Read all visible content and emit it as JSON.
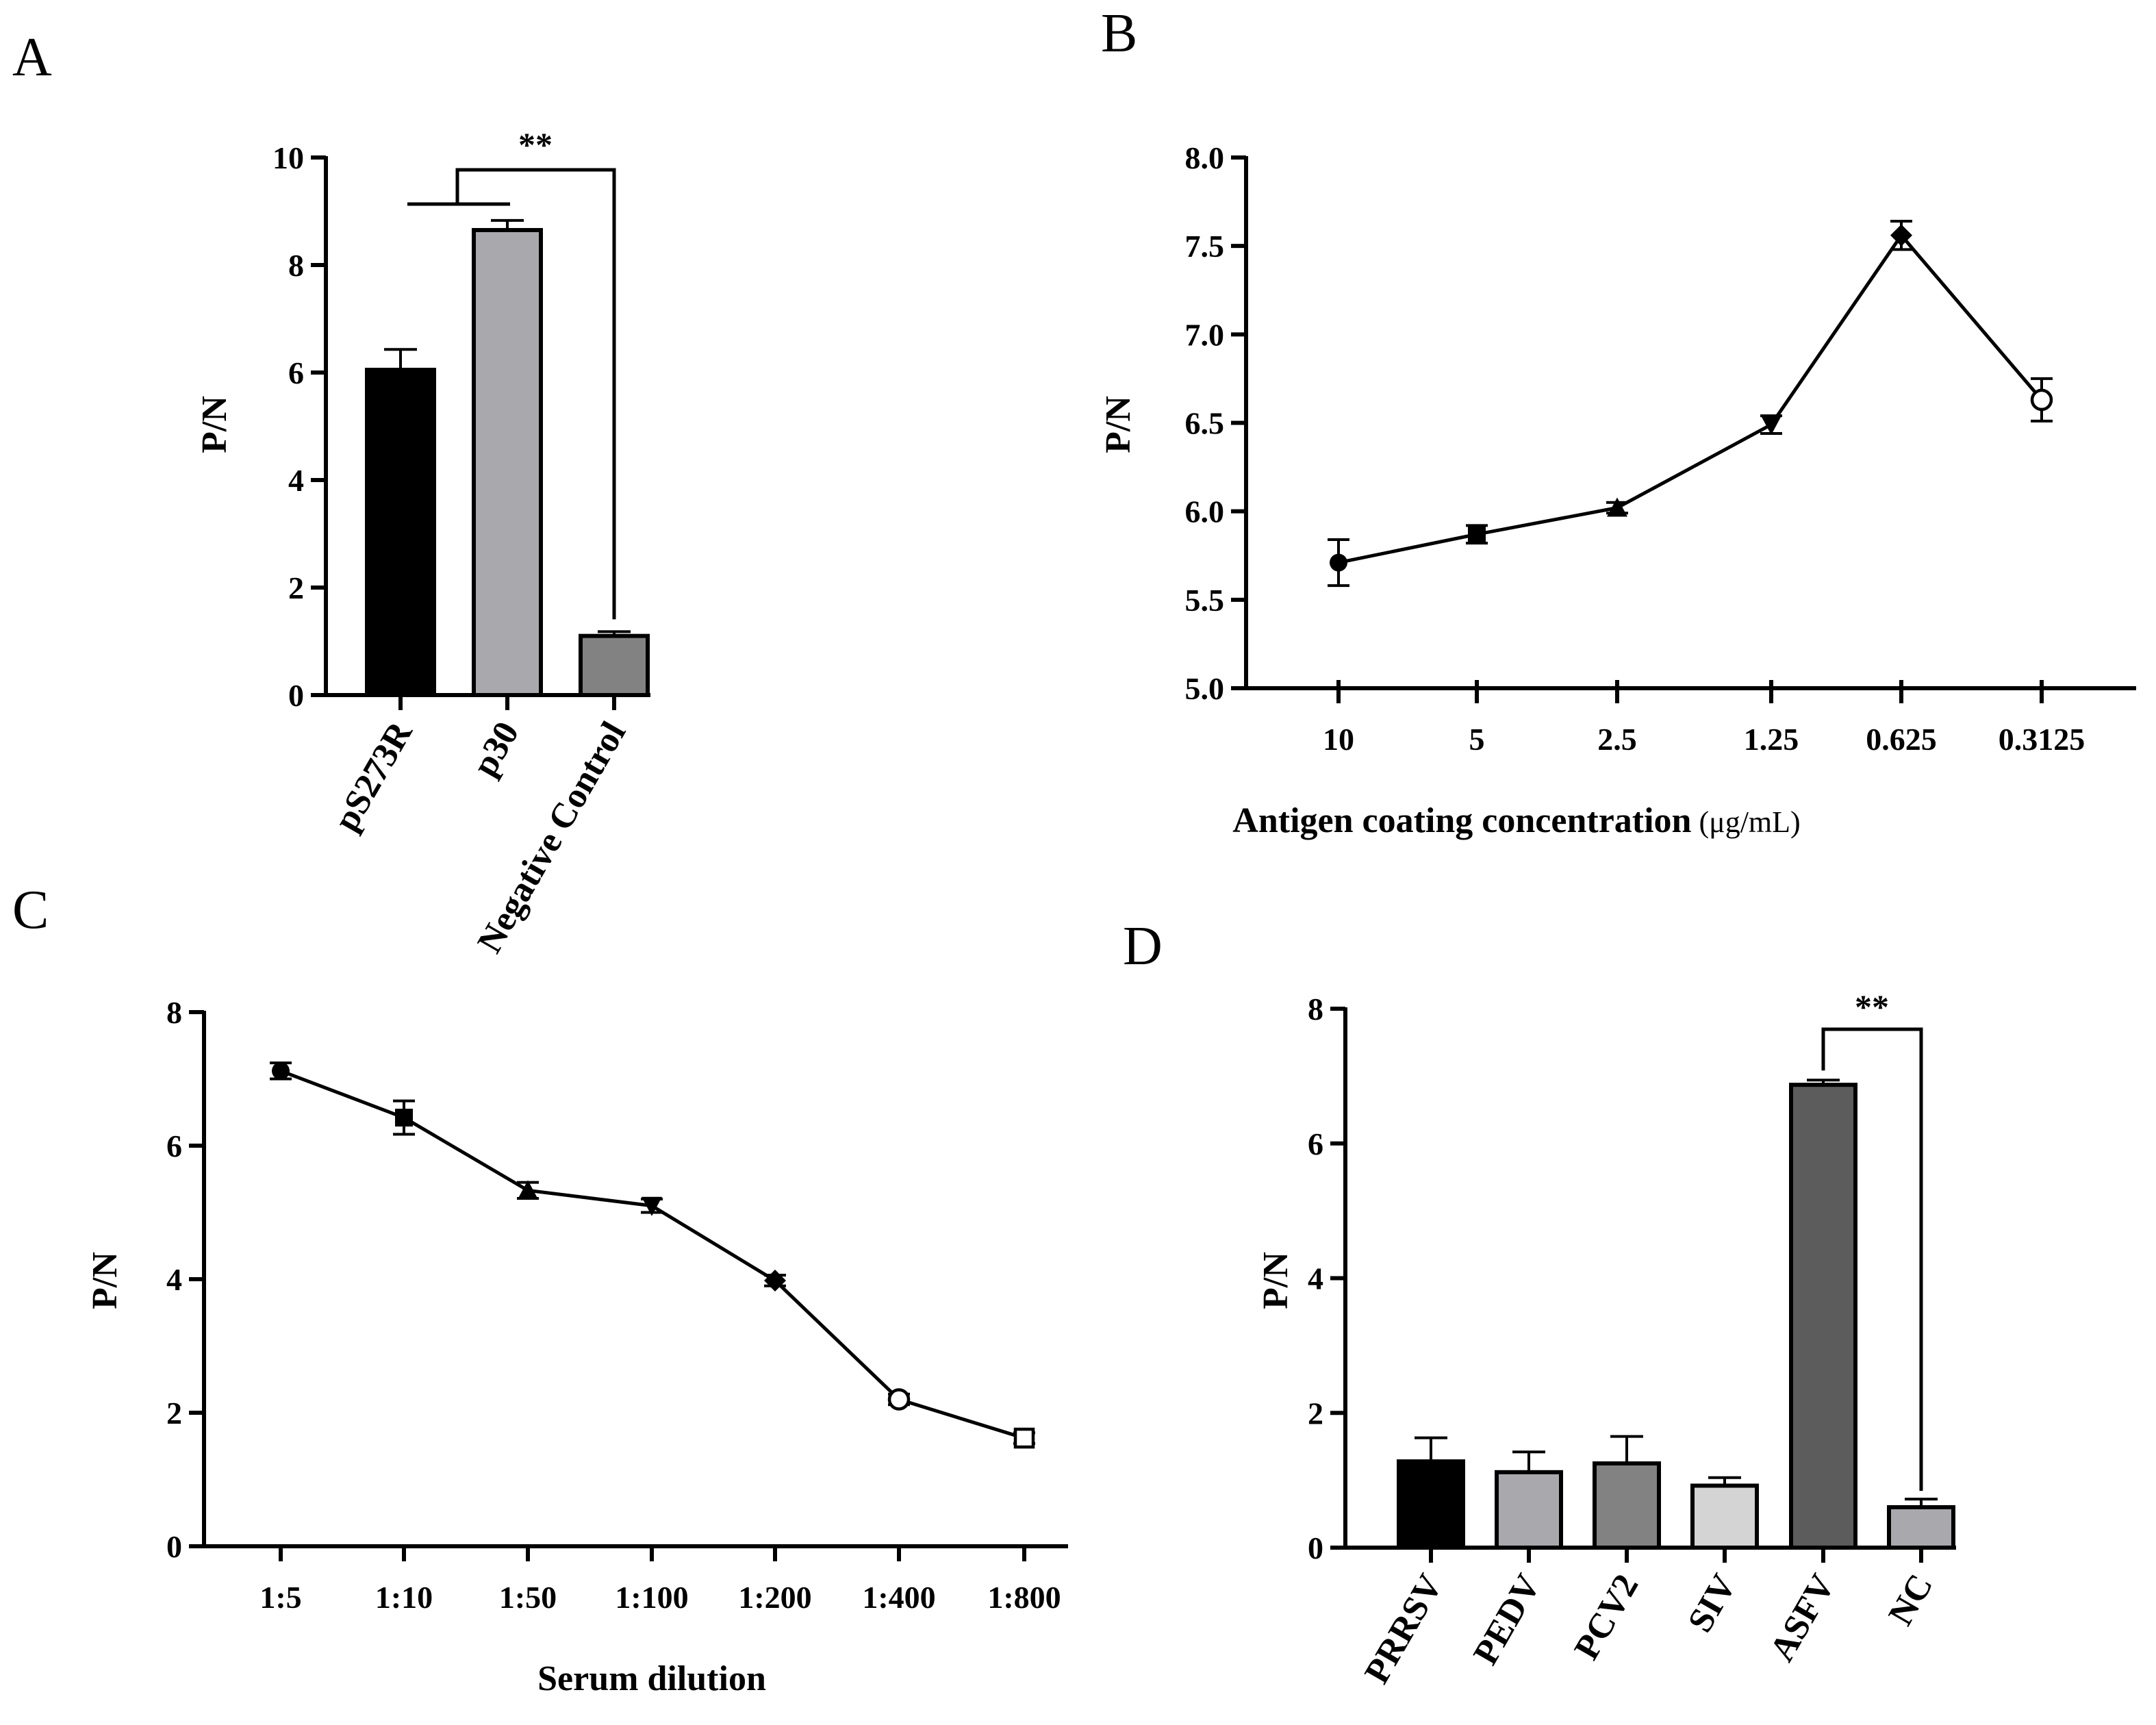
{
  "chart_data": [
    {
      "panel": "A",
      "type": "bar",
      "ylabel": "P/N",
      "xlabel": "",
      "ylim": [
        0,
        10
      ],
      "yticks": [
        "0",
        "2",
        "4",
        "6",
        "8",
        "10"
      ],
      "categories": [
        "pS273R",
        "p30",
        "Negative Control"
      ],
      "values": [
        6.05,
        8.65,
        1.1
      ],
      "errors": [
        0.38,
        0.18,
        0.08
      ],
      "colors": [
        "#000000",
        "#a9a9ad",
        "#828282"
      ],
      "significance": "**"
    },
    {
      "panel": "B",
      "type": "line",
      "ylabel": "P/N",
      "xlabel": "Antigen coating concentration",
      "xlabel_unit": "(μg/mL)",
      "ylim": [
        5.0,
        8.0
      ],
      "yticks": [
        "5.0",
        "5.5",
        "6.0",
        "6.5",
        "7.0",
        "7.5",
        "8.0"
      ],
      "categories": [
        "10",
        "5",
        "2.5",
        "1.25",
        "0.625",
        "0.3125"
      ],
      "values": [
        5.71,
        5.87,
        6.02,
        6.49,
        7.56,
        6.63
      ],
      "errors": [
        0.13,
        0.05,
        0.03,
        0.05,
        0.08,
        0.12
      ],
      "markers": [
        "circle",
        "square",
        "triangle-up",
        "triangle-down",
        "diamond",
        "open-circle"
      ]
    },
    {
      "panel": "C",
      "type": "line",
      "ylabel": "P/N",
      "xlabel": "Serum dilution",
      "ylim": [
        0,
        8
      ],
      "yticks": [
        "0",
        "2",
        "4",
        "6",
        "8"
      ],
      "categories": [
        "1:5",
        "1:10",
        "1:50",
        "1:100",
        "1:200",
        "1:400",
        "1:800"
      ],
      "values": [
        7.12,
        6.42,
        5.33,
        5.1,
        3.98,
        2.2,
        1.62
      ],
      "errors": [
        0.12,
        0.25,
        0.12,
        0.1,
        0.08,
        0.08,
        0.08
      ],
      "markers": [
        "circle",
        "square",
        "triangle-up",
        "triangle-down",
        "diamond",
        "open-circle",
        "open-square"
      ]
    },
    {
      "panel": "D",
      "type": "bar",
      "ylabel": "P/N",
      "xlabel": "",
      "ylim": [
        0,
        8
      ],
      "yticks": [
        "0",
        "2",
        "4",
        "6",
        "8"
      ],
      "categories": [
        "PRRSV",
        "PEDV",
        "PCV2",
        "SIV",
        "ASFV",
        "NC"
      ],
      "values": [
        1.28,
        1.12,
        1.25,
        0.92,
        6.87,
        0.6
      ],
      "errors": [
        0.35,
        0.3,
        0.4,
        0.12,
        0.07,
        0.12
      ],
      "colors": [
        "#000000",
        "#a9a9ad",
        "#828282",
        "#d4d4d4",
        "#5c5c5c",
        "#a9a9ad"
      ],
      "significance": "**"
    }
  ]
}
